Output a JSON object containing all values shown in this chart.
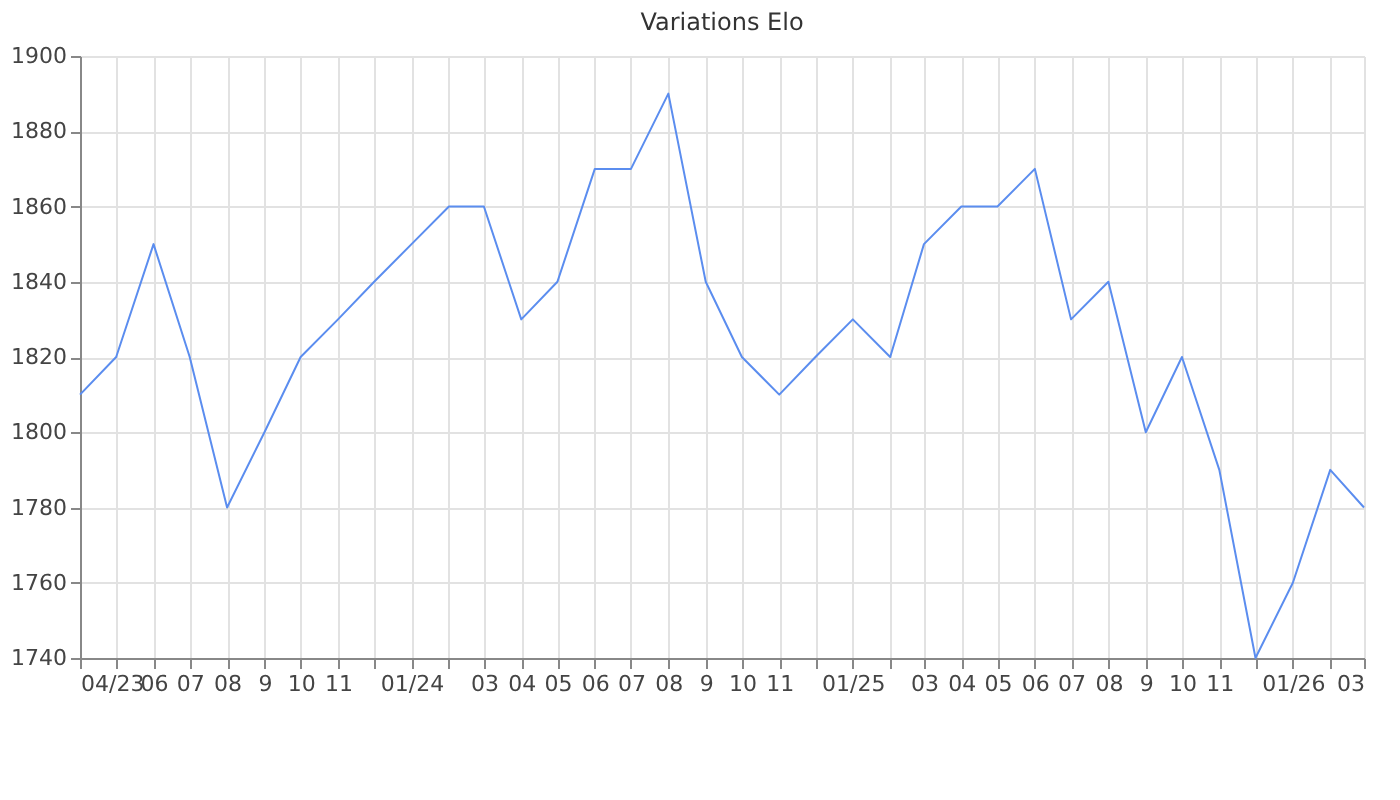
{
  "chart_data": {
    "type": "line",
    "title": "Variations Elo",
    "x": [
      "2023-04",
      "2023-05",
      "2023-06",
      "2023-07",
      "2023-08",
      "2023-09",
      "2023-10",
      "2023-11",
      "2023-12",
      "2024-01",
      "2024-02",
      "2024-03",
      "2024-04",
      "2024-05",
      "2024-06",
      "2024-07",
      "2024-08",
      "2024-09",
      "2024-10",
      "2024-11",
      "2024-12",
      "2025-01",
      "2025-02",
      "2025-03",
      "2025-04",
      "2025-05",
      "2025-06",
      "2025-07",
      "2025-08",
      "2025-09",
      "2025-10",
      "2025-11",
      "2025-12",
      "2026-01",
      "2026-02",
      "2026-03"
    ],
    "series": [
      {
        "color": "#5b8def",
        "values": [
          1810,
          1820,
          1850,
          1820,
          1780,
          1800,
          1820,
          1830,
          1840,
          1850,
          1860,
          1860,
          1830,
          1840,
          1870,
          1870,
          1890,
          1840,
          1820,
          1810,
          1820,
          1830,
          1820,
          1850,
          1860,
          1860,
          1870,
          1830,
          1840,
          1800,
          1820,
          1790,
          1740,
          1760,
          1790,
          1780
        ]
      }
    ],
    "xlim": [
      "2023-04",
      "2026-03"
    ],
    "xticks": [
      {
        "value": "2023-04",
        "label": "04/23"
      },
      {
        "value": "2023-05",
        "label": null
      },
      {
        "value": "2023-06",
        "label": "06"
      },
      {
        "value": "2023-07",
        "label": "07"
      },
      {
        "value": "2023-08",
        "label": "08"
      },
      {
        "value": "2023-09",
        "label": "9"
      },
      {
        "value": "2023-10",
        "label": "10"
      },
      {
        "value": "2023-11",
        "label": "11"
      },
      {
        "value": "2023-12",
        "label": null
      },
      {
        "value": "2024-01",
        "label": "01/24"
      },
      {
        "value": "2024-02",
        "label": null
      },
      {
        "value": "2024-03",
        "label": "03"
      },
      {
        "value": "2024-04",
        "label": "04"
      },
      {
        "value": "2024-05",
        "label": "05"
      },
      {
        "value": "2024-06",
        "label": "06"
      },
      {
        "value": "2024-07",
        "label": "07"
      },
      {
        "value": "2024-08",
        "label": "08"
      },
      {
        "value": "2024-09",
        "label": "9"
      },
      {
        "value": "2024-10",
        "label": "10"
      },
      {
        "value": "2024-11",
        "label": "11"
      },
      {
        "value": "2024-12",
        "label": null
      },
      {
        "value": "2025-01",
        "label": "01/25"
      },
      {
        "value": "2025-02",
        "label": null
      },
      {
        "value": "2025-03",
        "label": "03"
      },
      {
        "value": "2025-04",
        "label": "04"
      },
      {
        "value": "2025-05",
        "label": "05"
      },
      {
        "value": "2025-06",
        "label": "06"
      },
      {
        "value": "2025-07",
        "label": "07"
      },
      {
        "value": "2025-08",
        "label": "08"
      },
      {
        "value": "2025-09",
        "label": "9"
      },
      {
        "value": "2025-10",
        "label": "10"
      },
      {
        "value": "2025-11",
        "label": "11"
      },
      {
        "value": "2025-12",
        "label": null
      },
      {
        "value": "2026-01",
        "label": "01/26"
      },
      {
        "value": "2026-02",
        "label": null
      },
      {
        "value": "2026-03",
        "label": "03"
      }
    ],
    "ylim": [
      1740,
      1900
    ],
    "yticks": [
      1740,
      1760,
      1780,
      1800,
      1820,
      1840,
      1860,
      1880,
      1900
    ],
    "grid": true,
    "marker": "none",
    "line_style": "solid"
  }
}
